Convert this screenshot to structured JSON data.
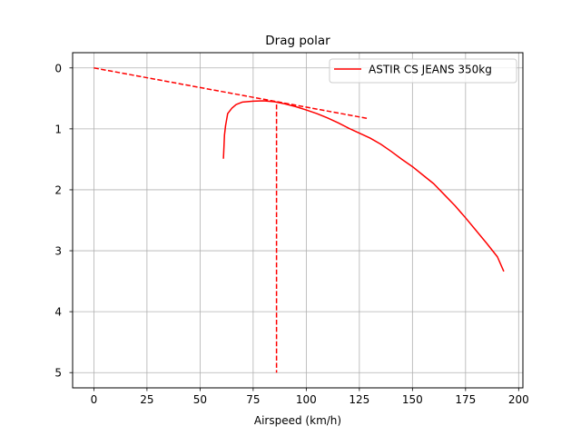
{
  "chart_data": {
    "type": "line",
    "title": "Drag polar",
    "xlabel": "Airspeed (km/h)",
    "ylabel": "",
    "xlim": [
      -10,
      202
    ],
    "ylim": [
      5.25,
      -0.25
    ],
    "y_inverted": true,
    "xticks": [
      0,
      25,
      50,
      75,
      100,
      125,
      150,
      175,
      200
    ],
    "yticks": [
      0,
      1,
      2,
      3,
      4,
      5
    ],
    "grid": true,
    "legend": {
      "position": "top-right"
    },
    "colors": {
      "series": "#ff0000"
    },
    "series": [
      {
        "name": "ASTIR CS JEANS 350kg",
        "style": "solid",
        "x": [
          61,
          61.5,
          62,
          63,
          65,
          67,
          70,
          75,
          80,
          85,
          90,
          95,
          100,
          105,
          110,
          115,
          120,
          125,
          130,
          135,
          140,
          145,
          150,
          155,
          160,
          165,
          170,
          175,
          180,
          185,
          190,
          193
        ],
        "y": [
          1.49,
          1.1,
          0.95,
          0.75,
          0.66,
          0.6,
          0.56,
          0.545,
          0.54,
          0.555,
          0.59,
          0.635,
          0.69,
          0.75,
          0.82,
          0.9,
          0.99,
          1.07,
          1.15,
          1.25,
          1.37,
          1.5,
          1.62,
          1.76,
          1.9,
          2.08,
          2.26,
          2.46,
          2.67,
          2.88,
          3.1,
          3.34
        ]
      }
    ],
    "reference_lines": [
      {
        "style": "dashed",
        "x": [
          0,
          129
        ],
        "y": [
          0,
          0.83
        ]
      },
      {
        "style": "dashed",
        "x": [
          86,
          86
        ],
        "y": [
          0.6,
          5
        ]
      }
    ]
  }
}
